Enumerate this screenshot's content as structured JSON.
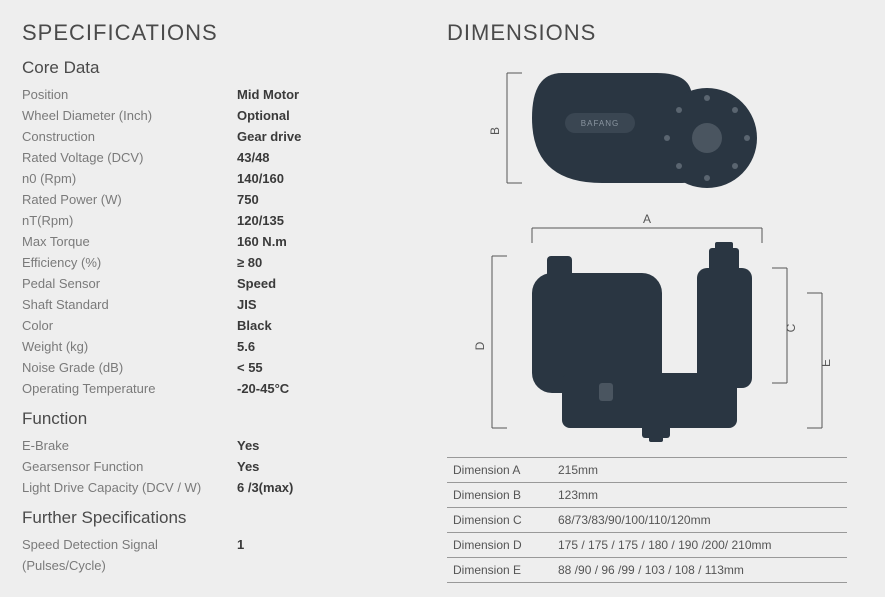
{
  "headings": {
    "specifications": "SPECIFICATIONS",
    "dimensions": "DIMENSIONS",
    "core": "Core Data",
    "function": "Function",
    "further": "Further Specifications"
  },
  "core": [
    {
      "label": "Position",
      "value": "Mid Motor"
    },
    {
      "label": "Wheel Diameter (Inch)",
      "value": "Optional"
    },
    {
      "label": "Construction",
      "value": "Gear drive"
    },
    {
      "label": "Rated Voltage (DCV)",
      "value": "43/48"
    },
    {
      "label": "n0 (Rpm)",
      "value": "140/160"
    },
    {
      "label": "Rated Power (W)",
      "value": "750"
    },
    {
      "label": "nT(Rpm)",
      "value": "120/135"
    },
    {
      "label": "Max Torque",
      "value": "160 N.m"
    },
    {
      "label": "Efficiency (%)",
      "value": "≥ 80"
    },
    {
      "label": "Pedal Sensor",
      "value": "Speed"
    },
    {
      "label": "Shaft Standard",
      "value": "JIS"
    },
    {
      "label": "Color",
      "value": "Black"
    },
    {
      "label": "Weight (kg)",
      "value": "5.6"
    },
    {
      "label": "Noise Grade (dB)",
      "value": "< 55"
    },
    {
      "label": "Operating Temperature",
      "value": "-20-45°C"
    }
  ],
  "function": [
    {
      "label": "E-Brake",
      "value": "Yes"
    },
    {
      "label": "Gearsensor Function",
      "value": "Yes"
    },
    {
      "label": "Light Drive Capacity (DCV / W)",
      "value": "6 /3(max)"
    }
  ],
  "further": [
    {
      "label": "Speed Detection Signal (Pulses/Cycle)",
      "value": "1"
    }
  ],
  "dims": [
    {
      "label": "Dimension A",
      "value": "215mm"
    },
    {
      "label": "Dimension B",
      "value": "123mm"
    },
    {
      "label": "Dimension C",
      "value": "68/73/83/90/100/110/120mm"
    },
    {
      "label": "Dimension D",
      "value": "175 / 175 / 175 / 180 / 190 /200/ 210mm"
    },
    {
      "label": "Dimension E",
      "value": "88 /90 / 96 /99 / 103 / 108 / 113mm"
    }
  ],
  "diagram": {
    "top": {
      "labelB": "B"
    },
    "bottom": {
      "labelA": "A",
      "labelC": "C",
      "labelD": "D",
      "labelE": "E"
    },
    "motor_color": "#2a3642",
    "line_color": "#555555",
    "brand": "BAFANG"
  }
}
